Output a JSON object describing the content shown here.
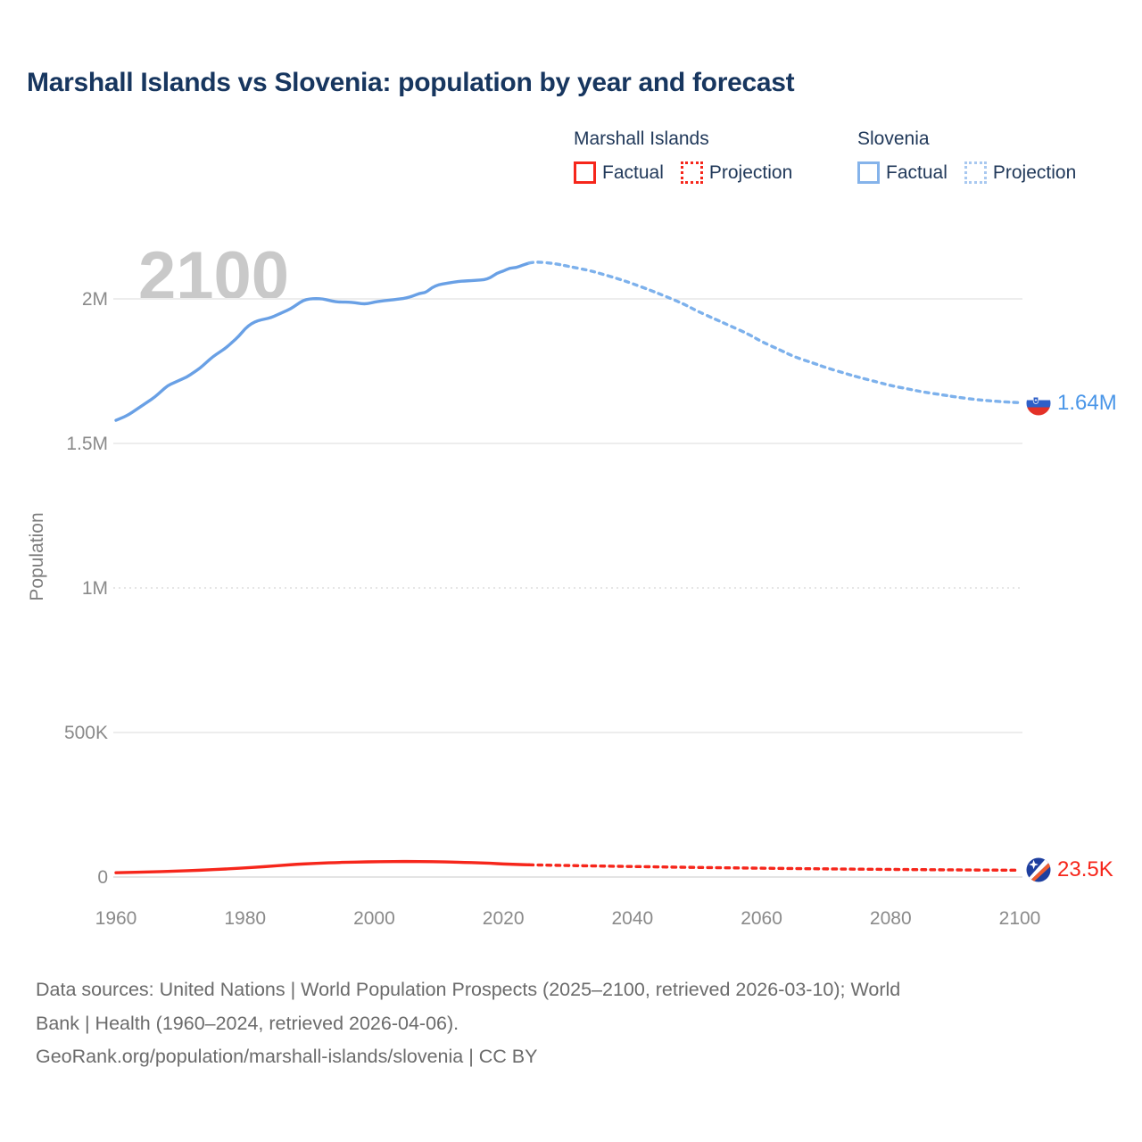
{
  "title": "Marshall Islands vs Slovenia: population by year and forecast",
  "watermark": "2100",
  "legend": {
    "colors": {
      "red": "#f6261b",
      "blue": "#85b3ea",
      "blue_light": "#a8c8f0"
    },
    "groups": [
      {
        "name": "Marshall Islands",
        "items": [
          {
            "label": "Factual",
            "style": "solid"
          },
          {
            "label": "Projection",
            "style": "dotted"
          }
        ]
      },
      {
        "name": "Slovenia",
        "items": [
          {
            "label": "Factual",
            "style": "solid"
          },
          {
            "label": "Projection",
            "style": "dotted"
          }
        ]
      }
    ]
  },
  "end_labels": {
    "slovenia": {
      "value": "1.64M",
      "color": "#4a96e8"
    },
    "marshall_islands": {
      "value": "23.5K",
      "color": "#f6261b"
    }
  },
  "footer": {
    "sources_lines": [
      "Data sources: United Nations | World Population Prospects (2025–2100, retrieved 2026-03-10); World",
      "Bank | Health (1960–2024, retrieved 2026-04-06)."
    ],
    "attribution": "GeoRank.org/population/marshall-islands/slovenia | CC BY"
  },
  "chart_data": {
    "type": "line",
    "title": "Marshall Islands vs Slovenia: population by year and forecast",
    "xlabel": "",
    "ylabel": "Population",
    "unit": "persons",
    "xlim": [
      1960,
      2100
    ],
    "ylim": [
      0,
      2200000
    ],
    "grid": "horizontal",
    "legend_position": "top-right",
    "x_ticks": [
      1960,
      1980,
      2000,
      2020,
      2040,
      2060,
      2080,
      2100
    ],
    "y_ticks": [
      {
        "value": 0,
        "label": "0",
        "grid": "solid"
      },
      {
        "value": 500000,
        "label": "500K",
        "grid": "solid"
      },
      {
        "value": 1000000,
        "label": "1M",
        "grid": "dotted"
      },
      {
        "value": 1500000,
        "label": "1.5M",
        "grid": "solid"
      },
      {
        "value": 2000000,
        "label": "2M",
        "grid": "solid"
      }
    ],
    "series": [
      {
        "name": "Slovenia Factual",
        "color": "#69a0e5",
        "style": "solid",
        "points": [
          [
            1960,
            1580000
          ],
          [
            1961,
            1589000
          ],
          [
            1962,
            1600000
          ],
          [
            1963,
            1615000
          ],
          [
            1964,
            1630000
          ],
          [
            1965,
            1645000
          ],
          [
            1966,
            1660000
          ],
          [
            1967,
            1680000
          ],
          [
            1968,
            1700000
          ],
          [
            1969,
            1710000
          ],
          [
            1970,
            1720000
          ],
          [
            1971,
            1730000
          ],
          [
            1972,
            1745000
          ],
          [
            1973,
            1760000
          ],
          [
            1974,
            1780000
          ],
          [
            1975,
            1800000
          ],
          [
            1976,
            1815000
          ],
          [
            1977,
            1830000
          ],
          [
            1978,
            1850000
          ],
          [
            1979,
            1870000
          ],
          [
            1980,
            1897000
          ],
          [
            1981,
            1915000
          ],
          [
            1982,
            1925000
          ],
          [
            1983,
            1930000
          ],
          [
            1984,
            1935000
          ],
          [
            1985,
            1945000
          ],
          [
            1986,
            1955000
          ],
          [
            1987,
            1965000
          ],
          [
            1988,
            1980000
          ],
          [
            1989,
            1995000
          ],
          [
            1990,
            2000000
          ],
          [
            1991,
            2001000
          ],
          [
            1992,
            2000000
          ],
          [
            1993,
            1995000
          ],
          [
            1994,
            1990000
          ],
          [
            1995,
            1989000
          ],
          [
            1996,
            1989000
          ],
          [
            1997,
            1987000
          ],
          [
            1998,
            1983000
          ],
          [
            1999,
            1983000
          ],
          [
            2000,
            1989000
          ],
          [
            2001,
            1992000
          ],
          [
            2002,
            1995000
          ],
          [
            2003,
            1997000
          ],
          [
            2004,
            2000000
          ],
          [
            2005,
            2003000
          ],
          [
            2006,
            2010000
          ],
          [
            2007,
            2019000
          ],
          [
            2008,
            2022000
          ],
          [
            2009,
            2040000
          ],
          [
            2010,
            2049000
          ],
          [
            2011,
            2053000
          ],
          [
            2012,
            2057000
          ],
          [
            2013,
            2060000
          ],
          [
            2014,
            2062000
          ],
          [
            2015,
            2063000
          ],
          [
            2016,
            2065000
          ],
          [
            2017,
            2066000
          ],
          [
            2018,
            2073000
          ],
          [
            2019,
            2089000
          ],
          [
            2020,
            2096000
          ],
          [
            2021,
            2107000
          ],
          [
            2022,
            2108000
          ],
          [
            2023,
            2117000
          ],
          [
            2024,
            2124000
          ]
        ]
      },
      {
        "name": "Slovenia Projection",
        "color": "#7db1ec",
        "style": "dotted",
        "points": [
          [
            2024,
            2124000
          ],
          [
            2025,
            2129000
          ],
          [
            2028,
            2122000
          ],
          [
            2030,
            2113000
          ],
          [
            2033,
            2100000
          ],
          [
            2035,
            2088000
          ],
          [
            2038,
            2068000
          ],
          [
            2040,
            2053000
          ],
          [
            2043,
            2028000
          ],
          [
            2045,
            2010000
          ],
          [
            2048,
            1982000
          ],
          [
            2050,
            1958000
          ],
          [
            2053,
            1928000
          ],
          [
            2055,
            1908000
          ],
          [
            2058,
            1878000
          ],
          [
            2060,
            1852000
          ],
          [
            2063,
            1822000
          ],
          [
            2065,
            1800000
          ],
          [
            2068,
            1778000
          ],
          [
            2070,
            1762000
          ],
          [
            2073,
            1742000
          ],
          [
            2075,
            1729000
          ],
          [
            2078,
            1712000
          ],
          [
            2080,
            1700000
          ],
          [
            2083,
            1687000
          ],
          [
            2085,
            1678000
          ],
          [
            2088,
            1668000
          ],
          [
            2090,
            1661000
          ],
          [
            2093,
            1652000
          ],
          [
            2095,
            1648000
          ],
          [
            2098,
            1643000
          ],
          [
            2100,
            1641000
          ]
        ]
      },
      {
        "name": "Marshall Islands Factual",
        "color": "#f6261b",
        "style": "solid",
        "points": [
          [
            1960,
            14700
          ],
          [
            1962,
            15800
          ],
          [
            1964,
            16900
          ],
          [
            1966,
            18100
          ],
          [
            1968,
            19400
          ],
          [
            1970,
            20900
          ],
          [
            1972,
            22600
          ],
          [
            1974,
            24500
          ],
          [
            1976,
            26600
          ],
          [
            1978,
            28900
          ],
          [
            1980,
            31500
          ],
          [
            1982,
            34300
          ],
          [
            1984,
            37500
          ],
          [
            1986,
            40900
          ],
          [
            1988,
            44000
          ],
          [
            1990,
            46300
          ],
          [
            1992,
            48300
          ],
          [
            1994,
            50000
          ],
          [
            1996,
            51200
          ],
          [
            1998,
            52100
          ],
          [
            2000,
            52900
          ],
          [
            2002,
            53400
          ],
          [
            2004,
            53700
          ],
          [
            2006,
            53600
          ],
          [
            2008,
            53200
          ],
          [
            2010,
            52600
          ],
          [
            2012,
            51800
          ],
          [
            2014,
            50700
          ],
          [
            2016,
            49200
          ],
          [
            2018,
            47400
          ],
          [
            2020,
            45200
          ],
          [
            2022,
            43500
          ],
          [
            2024,
            42100
          ]
        ]
      },
      {
        "name": "Marshall Islands Projection",
        "color": "#f6261b",
        "style": "dotted",
        "points": [
          [
            2024,
            42100
          ],
          [
            2025,
            41700
          ],
          [
            2030,
            39800
          ],
          [
            2035,
            38000
          ],
          [
            2040,
            36300
          ],
          [
            2045,
            34700
          ],
          [
            2050,
            33200
          ],
          [
            2055,
            31800
          ],
          [
            2060,
            30500
          ],
          [
            2065,
            29300
          ],
          [
            2070,
            28200
          ],
          [
            2075,
            27200
          ],
          [
            2080,
            26300
          ],
          [
            2085,
            25500
          ],
          [
            2090,
            24700
          ],
          [
            2095,
            24100
          ],
          [
            2100,
            23500
          ]
        ]
      }
    ]
  }
}
